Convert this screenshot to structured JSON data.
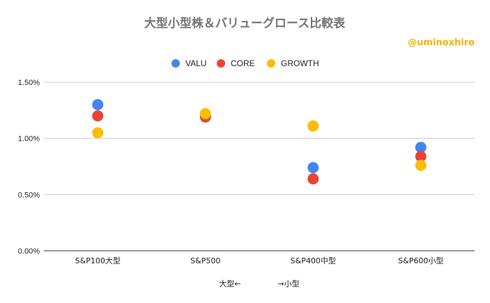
{
  "chart_data": {
    "type": "scatter",
    "title": "大型小型株＆バリューグロース比較表",
    "watermark": "@uminoxhiro",
    "categories": [
      "S&P100大型",
      "S&P500",
      "S&P400中型",
      "S&P600小型"
    ],
    "series": [
      {
        "name": "VALU",
        "color": "#4285f4",
        "values": [
          1.3,
          1.2,
          0.74,
          0.92
        ]
      },
      {
        "name": "CORE",
        "color": "#ea4335",
        "values": [
          1.2,
          1.19,
          0.64,
          0.84
        ]
      },
      {
        "name": "GROWTH",
        "color": "#fbbc04",
        "values": [
          1.05,
          1.22,
          1.11,
          0.76
        ]
      }
    ],
    "ylim": [
      0,
      1.5
    ],
    "yticks": [
      0,
      0.5,
      1.0,
      1.5
    ],
    "ytick_labels": [
      "0.00%",
      "0.50%",
      "1.00%",
      "1.50%"
    ],
    "xlabel_left": "大型←",
    "xlabel_right": "→小型",
    "legend_position": "top",
    "grid": true
  }
}
